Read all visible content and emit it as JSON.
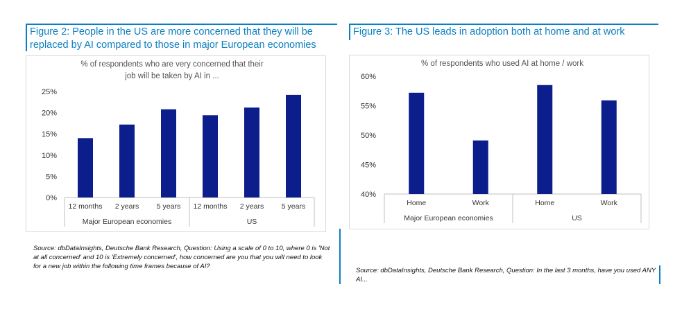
{
  "figure2": {
    "title": "Figure 2: People in the US are more concerned that they will be replaced by AI compared to those in major European economies",
    "title_line1": "Figure 2: People in the US are more concerned that they will be",
    "title_line2": "replaced by AI compared to those in major European economies",
    "source": "Source: dbDataInsights, Deutsche Bank Research, Question: Using a scale of 0 to 10, where 0 is 'Not at all concerned' and 10 is 'Extremely concerned', how concerned are you that you will need to look for a new job within the following time frames because of AI?"
  },
  "figure3": {
    "title": "Figure 3: The US leads in adoption both at home and at work",
    "source": "Source: dbDataInsights, Deutsche Bank Research, Question: In the last 3 months, have you used ANY AI..."
  },
  "chart_data": [
    {
      "type": "bar",
      "title": "% of respondents who are very concerned that their job will be taken by AI in ...",
      "title_line1": "% of respondents who are very concerned that their",
      "title_line2": "job will be taken by AI in ...",
      "groups": [
        "Major European economies",
        "US"
      ],
      "categories": [
        "12 months",
        "2 years",
        "5 years",
        "12 months",
        "2 years",
        "5 years"
      ],
      "group_index": [
        0,
        0,
        0,
        1,
        1,
        1
      ],
      "values": [
        14,
        17.2,
        20.8,
        19.4,
        21.2,
        24.2
      ],
      "ylim": [
        0,
        25
      ],
      "yticks": [
        "0%",
        "5%",
        "10%",
        "15%",
        "20%",
        "25%"
      ],
      "ytick_values": [
        0,
        5,
        10,
        15,
        20,
        25
      ],
      "bar_color": "#0b1e8c"
    },
    {
      "type": "bar",
      "title": "% of respondents who used AI at home / work",
      "groups": [
        "Major European economies",
        "US"
      ],
      "categories": [
        "Home",
        "Work",
        "Home",
        "Work"
      ],
      "group_index": [
        0,
        0,
        1,
        1
      ],
      "values": [
        57.2,
        49.1,
        58.5,
        55.9
      ],
      "ylim": [
        40,
        60
      ],
      "yticks": [
        "40%",
        "45%",
        "50%",
        "55%",
        "60%"
      ],
      "ytick_values": [
        40,
        45,
        50,
        55,
        60
      ],
      "bar_color": "#0b1e8c"
    }
  ]
}
